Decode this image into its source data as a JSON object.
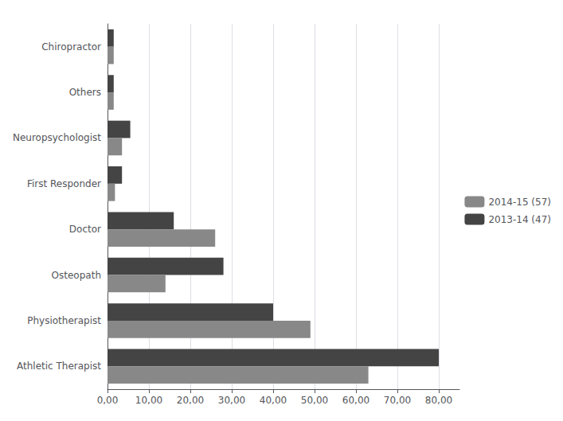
{
  "chart_data": {
    "type": "bar",
    "orientation": "horizontal",
    "categories": [
      "Athletic Therapist",
      "Physiotherapist",
      "Osteopath",
      "Doctor",
      "First Responder",
      "Neuropsychologist",
      "Others",
      "Chiropractor"
    ],
    "series": [
      {
        "name": "2014-15 (57)",
        "color": "#888888",
        "values": [
          63.0,
          49.0,
          14.0,
          26.0,
          1.8,
          3.5,
          1.5,
          1.5
        ]
      },
      {
        "name": "2013-14 (47)",
        "color": "#444444",
        "values": [
          80.0,
          40.0,
          28.0,
          16.0,
          3.5,
          5.5,
          1.5,
          1.5
        ]
      }
    ],
    "xlim": [
      0,
      85
    ],
    "xticks": [
      {
        "value": 0,
        "label": "0,00"
      },
      {
        "value": 10,
        "label": "10,00"
      },
      {
        "value": 20,
        "label": "20,00"
      },
      {
        "value": 30,
        "label": "30,00"
      },
      {
        "value": 40,
        "label": "40,00"
      },
      {
        "value": 50,
        "label": "50,00"
      },
      {
        "value": 60,
        "label": "60,00"
      },
      {
        "value": 70,
        "label": "70,00"
      },
      {
        "value": 80,
        "label": "80,00"
      }
    ],
    "grid": true,
    "legend": "right"
  }
}
